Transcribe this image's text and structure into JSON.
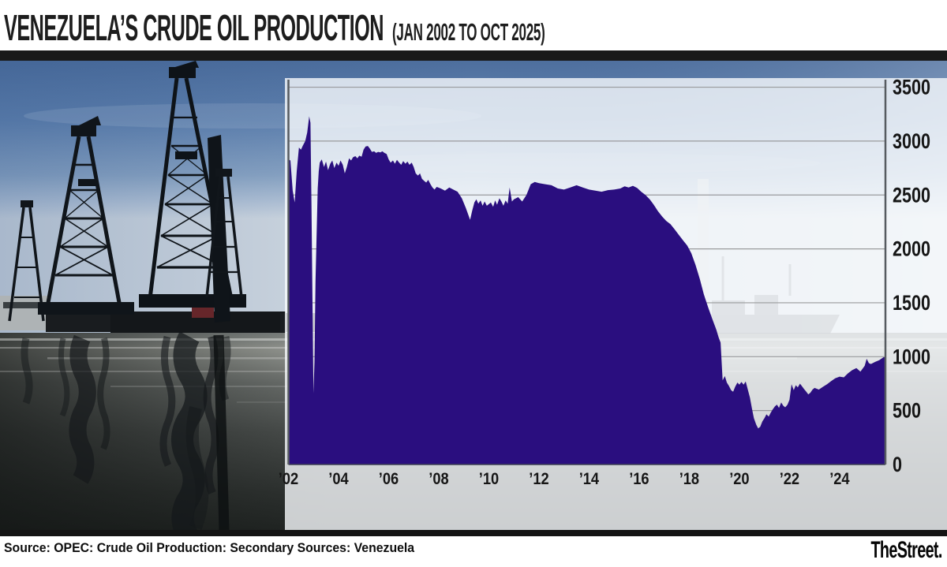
{
  "header": {
    "title": "VENEZUELA’S CRUDE OIL PRODUCTION",
    "subtitle": "(JAN 2002 TO OCT 2025)"
  },
  "footer": {
    "source": "Source: OPEC: Crude Oil Production: Secondary Sources: Venezuela",
    "brand": "TheStreet."
  },
  "colors": {
    "area_fill": "#2a0e7f",
    "grid_line": "#999a9c",
    "axis_line": "#565b60",
    "label_text": "#161616",
    "header_bar": "#1a1a1a",
    "footer_bar": "#141414"
  },
  "chart_data": {
    "type": "area",
    "title": "VENEZUELA’S CRUDE OIL PRODUCTION (JAN 2002 TO OCT 2025)",
    "xlabel": "",
    "ylabel": "",
    "x_range": [
      2002.0,
      2025.83
    ],
    "ylim": [
      0,
      3570
    ],
    "grid": true,
    "legend": "none",
    "y_ticks": [
      0,
      500,
      1000,
      1500,
      2000,
      2500,
      3000,
      3500
    ],
    "x_ticks": [
      {
        "label": "’02",
        "year": 2002
      },
      {
        "label": "’04",
        "year": 2004
      },
      {
        "label": "’06",
        "year": 2006
      },
      {
        "label": "’08",
        "year": 2008
      },
      {
        "label": "’10",
        "year": 2010
      },
      {
        "label": "’12",
        "year": 2012
      },
      {
        "label": "’14",
        "year": 2014
      },
      {
        "label": "’16",
        "year": 2016
      },
      {
        "label": "’18",
        "year": 2018
      },
      {
        "label": "’20",
        "year": 2020
      },
      {
        "label": "’22",
        "year": 2022
      },
      {
        "label": "’24",
        "year": 2024
      }
    ],
    "series": [
      {
        "name": "Venezuela crude oil production",
        "points": [
          [
            2002.0,
            2830
          ],
          [
            2002.08,
            2820
          ],
          [
            2002.17,
            2540
          ],
          [
            2002.25,
            2430
          ],
          [
            2002.33,
            2720
          ],
          [
            2002.42,
            2940
          ],
          [
            2002.5,
            2920
          ],
          [
            2002.58,
            2960
          ],
          [
            2002.67,
            3000
          ],
          [
            2002.75,
            3080
          ],
          [
            2002.83,
            3230
          ],
          [
            2002.88,
            3170
          ],
          [
            2002.92,
            2400
          ],
          [
            2003.0,
            660
          ],
          [
            2003.04,
            950
          ],
          [
            2003.08,
            1700
          ],
          [
            2003.17,
            2560
          ],
          [
            2003.21,
            2720
          ],
          [
            2003.25,
            2800
          ],
          [
            2003.33,
            2830
          ],
          [
            2003.42,
            2760
          ],
          [
            2003.5,
            2810
          ],
          [
            2003.58,
            2730
          ],
          [
            2003.67,
            2790
          ],
          [
            2003.75,
            2820
          ],
          [
            2003.83,
            2750
          ],
          [
            2003.92,
            2800
          ],
          [
            2004.0,
            2770
          ],
          [
            2004.08,
            2820
          ],
          [
            2004.17,
            2780
          ],
          [
            2004.25,
            2700
          ],
          [
            2004.33,
            2760
          ],
          [
            2004.42,
            2840
          ],
          [
            2004.5,
            2820
          ],
          [
            2004.58,
            2850
          ],
          [
            2004.67,
            2860
          ],
          [
            2004.75,
            2840
          ],
          [
            2004.83,
            2865
          ],
          [
            2004.92,
            2855
          ],
          [
            2005.0,
            2920
          ],
          [
            2005.08,
            2950
          ],
          [
            2005.17,
            2955
          ],
          [
            2005.25,
            2930
          ],
          [
            2005.33,
            2900
          ],
          [
            2005.42,
            2905
          ],
          [
            2005.5,
            2890
          ],
          [
            2005.58,
            2900
          ],
          [
            2005.67,
            2895
          ],
          [
            2005.75,
            2905
          ],
          [
            2005.83,
            2890
          ],
          [
            2005.92,
            2880
          ],
          [
            2006.0,
            2830
          ],
          [
            2006.08,
            2800
          ],
          [
            2006.17,
            2820
          ],
          [
            2006.25,
            2790
          ],
          [
            2006.33,
            2825
          ],
          [
            2006.42,
            2800
          ],
          [
            2006.5,
            2780
          ],
          [
            2006.58,
            2815
          ],
          [
            2006.67,
            2790
          ],
          [
            2006.75,
            2810
          ],
          [
            2006.83,
            2780
          ],
          [
            2006.92,
            2800
          ],
          [
            2007.0,
            2760
          ],
          [
            2007.08,
            2700
          ],
          [
            2007.17,
            2680
          ],
          [
            2007.25,
            2700
          ],
          [
            2007.33,
            2650
          ],
          [
            2007.42,
            2630
          ],
          [
            2007.5,
            2615
          ],
          [
            2007.58,
            2640
          ],
          [
            2007.67,
            2600
          ],
          [
            2007.75,
            2570
          ],
          [
            2007.83,
            2550
          ],
          [
            2007.92,
            2575
          ],
          [
            2008.08,
            2560
          ],
          [
            2008.25,
            2540
          ],
          [
            2008.42,
            2570
          ],
          [
            2008.58,
            2550
          ],
          [
            2008.75,
            2530
          ],
          [
            2008.92,
            2470
          ],
          [
            2009.08,
            2380
          ],
          [
            2009.25,
            2270
          ],
          [
            2009.33,
            2350
          ],
          [
            2009.42,
            2430
          ],
          [
            2009.5,
            2460
          ],
          [
            2009.58,
            2420
          ],
          [
            2009.67,
            2450
          ],
          [
            2009.75,
            2400
          ],
          [
            2009.83,
            2440
          ],
          [
            2009.92,
            2400
          ],
          [
            2010.08,
            2430
          ],
          [
            2010.17,
            2390
          ],
          [
            2010.25,
            2450
          ],
          [
            2010.33,
            2410
          ],
          [
            2010.42,
            2470
          ],
          [
            2010.5,
            2440
          ],
          [
            2010.58,
            2400
          ],
          [
            2010.67,
            2450
          ],
          [
            2010.75,
            2420
          ],
          [
            2010.83,
            2570
          ],
          [
            2010.92,
            2440
          ],
          [
            2011.0,
            2460
          ],
          [
            2011.17,
            2480
          ],
          [
            2011.33,
            2440
          ],
          [
            2011.5,
            2500
          ],
          [
            2011.67,
            2600
          ],
          [
            2011.83,
            2620
          ],
          [
            2012.0,
            2610
          ],
          [
            2012.25,
            2600
          ],
          [
            2012.5,
            2590
          ],
          [
            2012.75,
            2560
          ],
          [
            2013.0,
            2550
          ],
          [
            2013.25,
            2570
          ],
          [
            2013.5,
            2590
          ],
          [
            2013.75,
            2570
          ],
          [
            2014.0,
            2550
          ],
          [
            2014.25,
            2540
          ],
          [
            2014.5,
            2530
          ],
          [
            2014.75,
            2545
          ],
          [
            2015.0,
            2550
          ],
          [
            2015.25,
            2560
          ],
          [
            2015.42,
            2580
          ],
          [
            2015.58,
            2570
          ],
          [
            2015.75,
            2585
          ],
          [
            2015.92,
            2565
          ],
          [
            2016.08,
            2530
          ],
          [
            2016.25,
            2500
          ],
          [
            2016.42,
            2460
          ],
          [
            2016.58,
            2410
          ],
          [
            2016.75,
            2350
          ],
          [
            2016.92,
            2300
          ],
          [
            2017.08,
            2260
          ],
          [
            2017.25,
            2230
          ],
          [
            2017.42,
            2180
          ],
          [
            2017.58,
            2130
          ],
          [
            2017.75,
            2080
          ],
          [
            2017.92,
            2030
          ],
          [
            2018.08,
            1960
          ],
          [
            2018.25,
            1850
          ],
          [
            2018.42,
            1720
          ],
          [
            2018.58,
            1580
          ],
          [
            2018.75,
            1460
          ],
          [
            2018.92,
            1350
          ],
          [
            2019.08,
            1250
          ],
          [
            2019.17,
            1180
          ],
          [
            2019.25,
            1130
          ],
          [
            2019.33,
            780
          ],
          [
            2019.42,
            820
          ],
          [
            2019.5,
            760
          ],
          [
            2019.58,
            730
          ],
          [
            2019.67,
            690
          ],
          [
            2019.75,
            675
          ],
          [
            2019.83,
            720
          ],
          [
            2019.92,
            760
          ],
          [
            2020.0,
            740
          ],
          [
            2020.08,
            765
          ],
          [
            2020.17,
            740
          ],
          [
            2020.25,
            770
          ],
          [
            2020.33,
            700
          ],
          [
            2020.42,
            620
          ],
          [
            2020.5,
            520
          ],
          [
            2020.58,
            430
          ],
          [
            2020.67,
            370
          ],
          [
            2020.75,
            335
          ],
          [
            2020.83,
            350
          ],
          [
            2020.92,
            400
          ],
          [
            2021.0,
            430
          ],
          [
            2021.08,
            465
          ],
          [
            2021.17,
            445
          ],
          [
            2021.25,
            480
          ],
          [
            2021.33,
            510
          ],
          [
            2021.42,
            540
          ],
          [
            2021.5,
            555
          ],
          [
            2021.58,
            525
          ],
          [
            2021.67,
            575
          ],
          [
            2021.75,
            545
          ],
          [
            2021.83,
            530
          ],
          [
            2021.92,
            555
          ],
          [
            2022.0,
            600
          ],
          [
            2022.08,
            745
          ],
          [
            2022.17,
            690
          ],
          [
            2022.25,
            735
          ],
          [
            2022.33,
            715
          ],
          [
            2022.42,
            750
          ],
          [
            2022.5,
            725
          ],
          [
            2022.58,
            700
          ],
          [
            2022.67,
            675
          ],
          [
            2022.75,
            650
          ],
          [
            2022.83,
            665
          ],
          [
            2022.92,
            695
          ],
          [
            2023.0,
            710
          ],
          [
            2023.17,
            695
          ],
          [
            2023.33,
            720
          ],
          [
            2023.5,
            745
          ],
          [
            2023.67,
            775
          ],
          [
            2023.83,
            800
          ],
          [
            2024.0,
            815
          ],
          [
            2024.17,
            808
          ],
          [
            2024.33,
            845
          ],
          [
            2024.5,
            875
          ],
          [
            2024.67,
            895
          ],
          [
            2024.83,
            862
          ],
          [
            2025.0,
            915
          ],
          [
            2025.08,
            980
          ],
          [
            2025.17,
            940
          ],
          [
            2025.25,
            932
          ],
          [
            2025.42,
            952
          ],
          [
            2025.58,
            968
          ],
          [
            2025.75,
            995
          ]
        ]
      }
    ]
  }
}
